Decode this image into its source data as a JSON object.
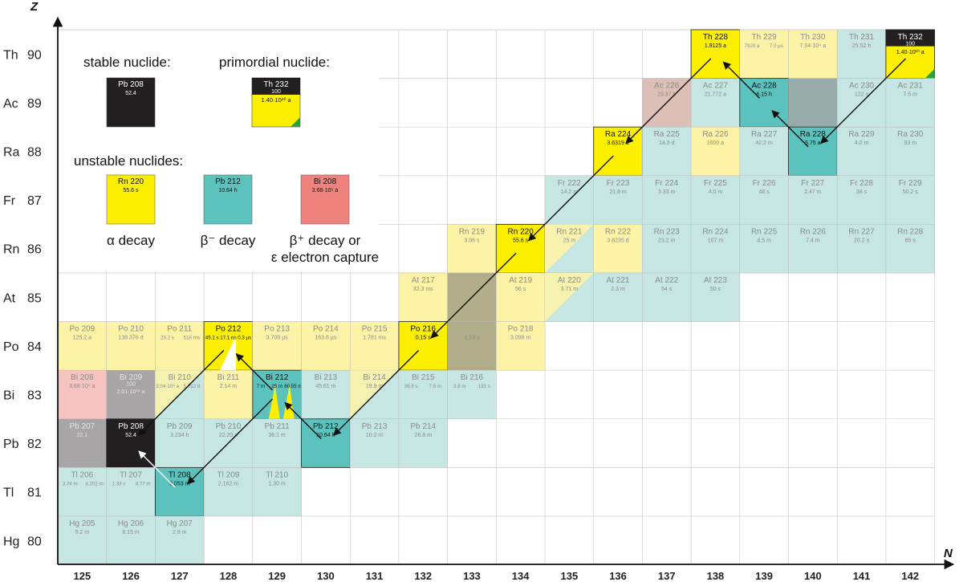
{
  "axes": {
    "x_label": "N",
    "y_label": "Z",
    "n_values": [
      125,
      126,
      127,
      128,
      129,
      130,
      131,
      132,
      133,
      134,
      135,
      136,
      137,
      138,
      139,
      140,
      141,
      142
    ],
    "z_rows": [
      {
        "z": 90,
        "symbol": "Th"
      },
      {
        "z": 89,
        "symbol": "Ac"
      },
      {
        "z": 88,
        "symbol": "Ra"
      },
      {
        "z": 87,
        "symbol": "Fr"
      },
      {
        "z": 86,
        "symbol": "Rn"
      },
      {
        "z": 85,
        "symbol": "At"
      },
      {
        "z": 84,
        "symbol": "Po"
      },
      {
        "z": 83,
        "symbol": "Bi"
      },
      {
        "z": 82,
        "symbol": "Pb"
      },
      {
        "z": 81,
        "symbol": "Tl"
      },
      {
        "z": 80,
        "symbol": "Hg"
      }
    ]
  },
  "colors": {
    "alpha": "#fdef00",
    "beta_minus": "#5cc2bd",
    "beta_plus": "#f0827e",
    "stable": "#231f20",
    "alpha_faded": "#fdf3a6",
    "beta_minus_faded": "#c5e6e3",
    "beta_plus_faded": "#f6c3c0",
    "stable_faded": "#a7a5a6"
  },
  "legend": {
    "stable_label": "stable nuclide:",
    "primordial_label": "primordial nuclide:",
    "unstable_label": "unstable nuclides:",
    "alpha_caption": "α decay",
    "beta_minus_caption": "β⁻ decay",
    "beta_plus_caption_1": "β⁺ decay or",
    "beta_plus_caption_2": "ε electron capture",
    "stable_example": {
      "name": "Pb 208",
      "sub": "52.4"
    },
    "primordial_example": {
      "name": "Th 232",
      "abundance": "100",
      "halflife": "1.40·10¹⁰ a"
    },
    "alpha_example": {
      "name": "Rn 220",
      "halflife": "55.6 s"
    },
    "beta_minus_example": {
      "name": "Pb 212",
      "halflife": "10.64 h"
    },
    "beta_plus_example": {
      "name": "Bi 208",
      "halflife": "3.68·10⁵ a"
    }
  },
  "nuclides": [
    {
      "name": "Th 228",
      "n": 138,
      "z": 90,
      "type": "alpha",
      "halflife": "1.9125 a",
      "chain": true
    },
    {
      "name": "Th 229",
      "n": 139,
      "z": 90,
      "type": "alpha",
      "halflife": "7920 a",
      "minor": "7.0 µs",
      "chain": false
    },
    {
      "name": "Th 230",
      "n": 140,
      "z": 90,
      "type": "alpha",
      "halflife": "7.54·10⁴ a",
      "chain": false
    },
    {
      "name": "Th 231",
      "n": 141,
      "z": 90,
      "type": "beta_minus",
      "halflife": "25.52 h",
      "chain": false
    },
    {
      "name": "Th 232",
      "n": 142,
      "z": 90,
      "type": "primordial",
      "abundance": "100",
      "halflife": "1.40·10¹⁰ a",
      "chain": true
    },
    {
      "name": "Ac 226",
      "n": 137,
      "z": 89,
      "type": "beta_minus",
      "halflife": "29.37 h",
      "tint": "#dcc0b8",
      "chain": false
    },
    {
      "name": "Ac 227",
      "n": 138,
      "z": 89,
      "type": "beta_minus",
      "halflife": "21.772 a",
      "chain": false
    },
    {
      "name": "Ac 228",
      "n": 139,
      "z": 89,
      "type": "beta_minus",
      "halflife": "6.15 h",
      "chain": true
    },
    {
      "name": "",
      "n": 140,
      "z": 89,
      "type": "beta_minus",
      "halflife": "",
      "tint": "#97aba8",
      "chain": false
    },
    {
      "name": "Ac 230",
      "n": 141,
      "z": 89,
      "type": "beta_minus",
      "halflife": "122 s",
      "chain": false
    },
    {
      "name": "Ac 231",
      "n": 142,
      "z": 89,
      "type": "beta_minus",
      "halflife": "7.5 m",
      "chain": false
    },
    {
      "name": "Ra 224",
      "n": 136,
      "z": 88,
      "type": "alpha",
      "halflife": "3.6319 d",
      "chain": true
    },
    {
      "name": "Ra 225",
      "n": 137,
      "z": 88,
      "type": "beta_minus",
      "halflife": "14.9 d",
      "chain": false
    },
    {
      "name": "Ra 226",
      "n": 138,
      "z": 88,
      "type": "alpha",
      "halflife": "1600 a",
      "chain": false
    },
    {
      "name": "Ra 227",
      "n": 139,
      "z": 88,
      "type": "beta_minus",
      "halflife": "42.2 m",
      "chain": false
    },
    {
      "name": "Ra 228",
      "n": 140,
      "z": 88,
      "type": "beta_minus",
      "halflife": "5.75 a",
      "chain": true
    },
    {
      "name": "Ra 229",
      "n": 141,
      "z": 88,
      "type": "beta_minus",
      "halflife": "4.0 m",
      "chain": false
    },
    {
      "name": "Ra 230",
      "n": 142,
      "z": 88,
      "type": "beta_minus",
      "halflife": "93 m",
      "chain": false
    },
    {
      "name": "Fr 222",
      "n": 135,
      "z": 87,
      "type": "beta_minus",
      "halflife": "14.2 m",
      "chain": false
    },
    {
      "name": "Fr 223",
      "n": 136,
      "z": 87,
      "type": "beta_minus",
      "halflife": "21.8 m",
      "chain": false
    },
    {
      "name": "Fr 224",
      "n": 137,
      "z": 87,
      "type": "beta_minus",
      "halflife": "3.33 m",
      "chain": false
    },
    {
      "name": "Fr 225",
      "n": 138,
      "z": 87,
      "type": "beta_minus",
      "halflife": "4.0 m",
      "chain": false
    },
    {
      "name": "Fr 226",
      "n": 139,
      "z": 87,
      "type": "beta_minus",
      "halflife": "48 s",
      "chain": false
    },
    {
      "name": "Fr 227",
      "n": 140,
      "z": 87,
      "type": "beta_minus",
      "halflife": "2.47 m",
      "chain": false
    },
    {
      "name": "Fr 228",
      "n": 141,
      "z": 87,
      "type": "beta_minus",
      "halflife": "38 s",
      "chain": false
    },
    {
      "name": "Fr 229",
      "n": 142,
      "z": 87,
      "type": "beta_minus",
      "halflife": "50.2 s",
      "chain": false
    },
    {
      "name": "Rn 219",
      "n": 133,
      "z": 86,
      "type": "alpha",
      "halflife": "3.96 s",
      "chain": false
    },
    {
      "name": "Rn 220",
      "n": 134,
      "z": 86,
      "type": "alpha",
      "halflife": "55.6 s",
      "chain": true
    },
    {
      "name": "Rn 221",
      "n": 135,
      "z": 86,
      "type": "mixed_ba",
      "halflife": "25 m",
      "chain": false
    },
    {
      "name": "Rn 222",
      "n": 136,
      "z": 86,
      "type": "alpha",
      "halflife": "3.8235 d",
      "chain": false
    },
    {
      "name": "Rn 223",
      "n": 137,
      "z": 86,
      "type": "beta_minus",
      "halflife": "23.2 m",
      "chain": false
    },
    {
      "name": "Rn 224",
      "n": 138,
      "z": 86,
      "type": "beta_minus",
      "halflife": "107 m",
      "chain": false
    },
    {
      "name": "Rn 225",
      "n": 139,
      "z": 86,
      "type": "beta_minus",
      "halflife": "4.5 m",
      "chain": false
    },
    {
      "name": "Rn 226",
      "n": 140,
      "z": 86,
      "type": "beta_minus",
      "halflife": "7.4 m",
      "chain": false
    },
    {
      "name": "Rn 227",
      "n": 141,
      "z": 86,
      "type": "beta_minus",
      "halflife": "20.2 s",
      "chain": false
    },
    {
      "name": "Rn 228",
      "n": 142,
      "z": 86,
      "type": "beta_minus",
      "halflife": "65 s",
      "chain": false
    },
    {
      "name": "At 217",
      "n": 132,
      "z": 85,
      "type": "alpha",
      "halflife": "32.3 ms",
      "chain": false
    },
    {
      "name": "",
      "n": 133,
      "z": 85,
      "type": "alpha",
      "halflife": "",
      "tint": "#b1ac8a",
      "chain": false
    },
    {
      "name": "At 219",
      "n": 134,
      "z": 85,
      "type": "alpha",
      "halflife": "56 s",
      "chain": false
    },
    {
      "name": "At 220",
      "n": 135,
      "z": 85,
      "type": "mixed_ab",
      "halflife": "3.71 m",
      "chain": false
    },
    {
      "name": "At 221",
      "n": 136,
      "z": 85,
      "type": "beta_minus",
      "halflife": "2.3 m",
      "chain": false
    },
    {
      "name": "At 222",
      "n": 137,
      "z": 85,
      "type": "beta_minus",
      "halflife": "54 s",
      "chain": false
    },
    {
      "name": "At 223",
      "n": 138,
      "z": 85,
      "type": "beta_minus",
      "halflife": "50 s",
      "chain": false
    },
    {
      "name": "Po 209",
      "n": 125,
      "z": 84,
      "type": "alpha",
      "halflife": "125.2 a",
      "chain": false
    },
    {
      "name": "Po 210",
      "n": 126,
      "z": 84,
      "type": "alpha",
      "halflife": "138.376 d",
      "chain": false
    },
    {
      "name": "Po 211",
      "n": 127,
      "z": 84,
      "type": "alpha",
      "halflife": "25.2 s",
      "minor": "516 ms",
      "chain": false
    },
    {
      "name": "Po 212",
      "n": 128,
      "z": 84,
      "type": "alpha",
      "halflife": "45.1 s",
      "minor": "17.1 ns",
      "minor2": "0.3 µs",
      "chain": true
    },
    {
      "name": "Po 213",
      "n": 129,
      "z": 84,
      "type": "alpha",
      "halflife": "3.708 µs",
      "chain": false
    },
    {
      "name": "Po 214",
      "n": 130,
      "z": 84,
      "type": "alpha",
      "halflife": "163.6 µs",
      "chain": false
    },
    {
      "name": "Po 215",
      "n": 131,
      "z": 84,
      "type": "alpha",
      "halflife": "1.781 ms",
      "chain": false
    },
    {
      "name": "Po 216",
      "n": 132,
      "z": 84,
      "type": "alpha",
      "halflife": "0.15 s",
      "chain": true
    },
    {
      "name": "",
      "n": 133,
      "z": 84,
      "type": "alpha",
      "halflife": "1.53 s",
      "tint": "#b1ac8a",
      "chain": false
    },
    {
      "name": "Po 218",
      "n": 134,
      "z": 84,
      "type": "alpha",
      "halflife": "3.098 m",
      "chain": false
    },
    {
      "name": "Bi 208",
      "n": 125,
      "z": 83,
      "type": "beta_plus",
      "halflife": "3.68·10⁵ a",
      "chain": false
    },
    {
      "name": "Bi 209",
      "n": 126,
      "z": 83,
      "type": "primordial_faded",
      "halflife": "2.01·10¹⁹ a",
      "abundance": "100",
      "chain": false
    },
    {
      "name": "Bi 210",
      "n": 127,
      "z": 83,
      "type": "mixed_ab",
      "halflife": "3.04·10⁶ a",
      "minor": "5.012 d",
      "chain": false
    },
    {
      "name": "Bi 211",
      "n": 128,
      "z": 83,
      "type": "alpha",
      "halflife": "2.14 m",
      "chain": false
    },
    {
      "name": "Bi 212",
      "n": 129,
      "z": 83,
      "type": "beta_minus",
      "halflife": "7 m",
      "minor": "25 m",
      "minor2": "60.55 m",
      "chain": true
    },
    {
      "name": "Bi 213",
      "n": 130,
      "z": 83,
      "type": "beta_minus",
      "halflife": "45.61 m",
      "chain": false
    },
    {
      "name": "Bi 214",
      "n": 131,
      "z": 83,
      "type": "mixed_ab",
      "halflife": "19.9 m",
      "chain": false
    },
    {
      "name": "Bi 215",
      "n": 132,
      "z": 83,
      "type": "beta_minus",
      "halflife": "36.9 s",
      "minor": "7.6 m",
      "chain": false
    },
    {
      "name": "Bi 216",
      "n": 133,
      "z": 83,
      "type": "beta_minus",
      "halflife": "3.6 m",
      "minor": "133 s",
      "chain": false
    },
    {
      "name": "Pb 207",
      "n": 125,
      "z": 82,
      "type": "stable_faded",
      "halflife": "22.1",
      "chain": false
    },
    {
      "name": "Pb 208",
      "n": 126,
      "z": 82,
      "type": "stable",
      "halflife": "52.4",
      "chain": true
    },
    {
      "name": "Pb 209",
      "n": 127,
      "z": 82,
      "type": "beta_minus",
      "halflife": "3.234 h",
      "chain": false
    },
    {
      "name": "Pb 210",
      "n": 128,
      "z": 82,
      "type": "beta_minus",
      "halflife": "22.20 a",
      "chain": false
    },
    {
      "name": "Pb 211",
      "n": 129,
      "z": 82,
      "type": "beta_minus",
      "halflife": "36.1 m",
      "chain": false
    },
    {
      "name": "Pb 212",
      "n": 130,
      "z": 82,
      "type": "beta_minus",
      "halflife": "10.64 h",
      "chain": true
    },
    {
      "name": "Pb 213",
      "n": 131,
      "z": 82,
      "type": "beta_minus",
      "halflife": "10.2 m",
      "chain": false
    },
    {
      "name": "Pb 214",
      "n": 132,
      "z": 82,
      "type": "beta_minus",
      "halflife": "26.8 m",
      "chain": false
    },
    {
      "name": "Tl 206",
      "n": 125,
      "z": 81,
      "type": "beta_minus",
      "halflife": "3.74 m",
      "minor": "4.202 m",
      "chain": false
    },
    {
      "name": "Tl 207",
      "n": 126,
      "z": 81,
      "type": "beta_minus",
      "halflife": "1.33 s",
      "minor": "4.77 m",
      "chain": false
    },
    {
      "name": "Tl 208",
      "n": 127,
      "z": 81,
      "type": "beta_minus",
      "halflife": "3.053 m",
      "chain": true
    },
    {
      "name": "Tl 209",
      "n": 128,
      "z": 81,
      "type": "beta_minus",
      "halflife": "2.162 m",
      "chain": false
    },
    {
      "name": "Tl 210",
      "n": 129,
      "z": 81,
      "type": "beta_minus",
      "halflife": "1.30 m",
      "chain": false
    },
    {
      "name": "Hg 205",
      "n": 125,
      "z": 80,
      "type": "beta_minus",
      "halflife": "5.2 m",
      "chain": false
    },
    {
      "name": "Hg 206",
      "n": 126,
      "z": 80,
      "type": "beta_minus",
      "halflife": "8.15 m",
      "chain": false
    },
    {
      "name": "Hg 207",
      "n": 127,
      "z": 80,
      "type": "beta_minus",
      "halflife": "2.9 m",
      "chain": false
    }
  ],
  "decay_arrows": [
    {
      "from": "Th 232",
      "to": "Ra 228",
      "mode": "alpha"
    },
    {
      "from": "Ra 228",
      "to": "Ac 228",
      "mode": "beta_minus"
    },
    {
      "from": "Ac 228",
      "to": "Th 228",
      "mode": "beta_minus"
    },
    {
      "from": "Th 228",
      "to": "Ra 224",
      "mode": "alpha"
    },
    {
      "from": "Ra 224",
      "to": "Rn 220",
      "mode": "alpha"
    },
    {
      "from": "Rn 220",
      "to": "Po 216",
      "mode": "alpha"
    },
    {
      "from": "Po 216",
      "to": "Pb 212",
      "mode": "alpha"
    },
    {
      "from": "Pb 212",
      "to": "Bi 212",
      "mode": "beta_minus"
    },
    {
      "from": "Bi 212",
      "to": "Po 212",
      "mode": "beta_minus"
    },
    {
      "from": "Bi 212",
      "to": "Tl 208",
      "mode": "alpha"
    },
    {
      "from": "Po 212",
      "to": "Pb 208",
      "mode": "alpha"
    },
    {
      "from": "Tl 208",
      "to": "Pb 208",
      "mode": "beta_minus"
    }
  ]
}
